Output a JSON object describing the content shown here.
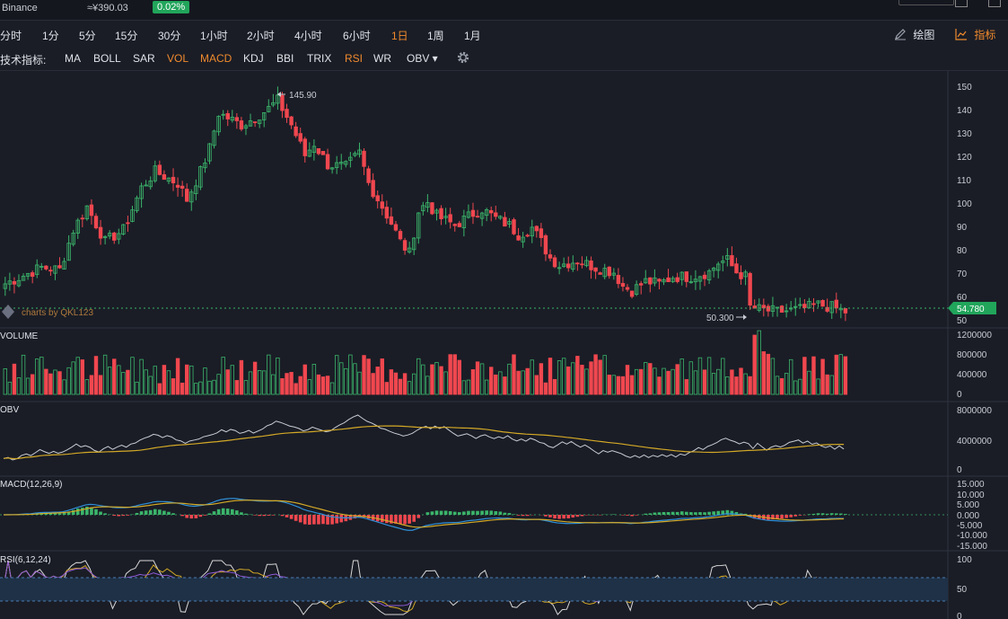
{
  "header": {
    "exchange": "Binance",
    "price": "≈¥390.03",
    "change": "0.02%"
  },
  "timeframes": [
    {
      "label": "分时",
      "active": false
    },
    {
      "label": "1分",
      "active": false
    },
    {
      "label": "5分",
      "active": false
    },
    {
      "label": "15分",
      "active": false
    },
    {
      "label": "30分",
      "active": false
    },
    {
      "label": "1小时",
      "active": false
    },
    {
      "label": "2小时",
      "active": false
    },
    {
      "label": "4小时",
      "active": false
    },
    {
      "label": "6小时",
      "active": false
    },
    {
      "label": "1日",
      "active": true
    },
    {
      "label": "1周",
      "active": false
    },
    {
      "label": "1月",
      "active": false
    }
  ],
  "tools": {
    "draw": "绘图",
    "indicator": "指标"
  },
  "indicator_bar": {
    "label": "技术指标:",
    "items": [
      {
        "label": "MA",
        "active": false
      },
      {
        "label": "BOLL",
        "active": false
      },
      {
        "label": "SAR",
        "active": false
      },
      {
        "label": "VOL",
        "active": true
      },
      {
        "label": "MACD",
        "active": true
      },
      {
        "label": "KDJ",
        "active": false
      },
      {
        "label": "BBI",
        "active": false
      },
      {
        "label": "TRIX",
        "active": false
      },
      {
        "label": "RSI",
        "active": true
      },
      {
        "label": "WR",
        "active": false
      },
      {
        "label": "OBV ▾",
        "active": false
      }
    ]
  },
  "colors": {
    "up": "#3bb56b",
    "down": "#f0474f",
    "bg": "#1a1d26",
    "accent": "#f08a2e",
    "last": "#21a55b"
  },
  "chart_data": {
    "type": "candlestick",
    "watermark": "charts by QKL123",
    "high_label": "145.90",
    "low_label": "50.300",
    "last_price": "54.780",
    "ylim": [
      50,
      150
    ],
    "y_ticks": [
      "150",
      "140",
      "130",
      "120",
      "110",
      "100",
      "90",
      "80",
      "70",
      "60",
      "50"
    ],
    "waypoints": [
      [
        0,
        67
      ],
      [
        8,
        74
      ],
      [
        12,
        73
      ],
      [
        15,
        90
      ],
      [
        18,
        100
      ],
      [
        22,
        85
      ],
      [
        26,
        90
      ],
      [
        30,
        108
      ],
      [
        33,
        115
      ],
      [
        36,
        112
      ],
      [
        38,
        110
      ],
      [
        40,
        103
      ],
      [
        43,
        115
      ],
      [
        45,
        125
      ],
      [
        47,
        140
      ],
      [
        52,
        135
      ],
      [
        55,
        138
      ],
      [
        58,
        142
      ],
      [
        60,
        145.5
      ],
      [
        63,
        135
      ],
      [
        66,
        122
      ],
      [
        68,
        127
      ],
      [
        71,
        118
      ],
      [
        75,
        117
      ],
      [
        78,
        123
      ],
      [
        80,
        110
      ],
      [
        83,
        100
      ],
      [
        85,
        93
      ],
      [
        87,
        85
      ],
      [
        89,
        80
      ],
      [
        91,
        98
      ],
      [
        93,
        102
      ],
      [
        95,
        96
      ],
      [
        99,
        92
      ],
      [
        103,
        97
      ],
      [
        105,
        99
      ],
      [
        108,
        95
      ],
      [
        111,
        92
      ],
      [
        113,
        88
      ],
      [
        116,
        91
      ],
      [
        118,
        85
      ],
      [
        120,
        78
      ],
      [
        122,
        75
      ],
      [
        126,
        77
      ],
      [
        130,
        74
      ],
      [
        134,
        72
      ],
      [
        136,
        66
      ],
      [
        138,
        64
      ],
      [
        141,
        68
      ],
      [
        144,
        67
      ],
      [
        147,
        70
      ],
      [
        151,
        70
      ],
      [
        155,
        72
      ],
      [
        157,
        76
      ],
      [
        159,
        77
      ],
      [
        161,
        72
      ],
      [
        163,
        70
      ],
      [
        164,
        57
      ],
      [
        166,
        56
      ],
      [
        170,
        55
      ],
      [
        175,
        56
      ],
      [
        179,
        58
      ],
      [
        182,
        57
      ],
      [
        185,
        55
      ]
    ],
    "panels": {
      "volume": {
        "title": "VOLUME",
        "ticks": [
          "1200000",
          "800000",
          "400000",
          "0"
        ]
      },
      "obv": {
        "title": "OBV",
        "ticks": [
          "8000000",
          "4000000",
          "0"
        ]
      },
      "macd": {
        "title": "MACD(12,26,9)",
        "ticks": [
          "15.000",
          "10.000",
          "5.000",
          "0.000",
          "-5.000",
          "-10.000",
          "-15.000"
        ]
      },
      "rsi": {
        "title": "RSI(6,12,24)",
        "ticks": [
          "100",
          "50",
          "0"
        ]
      }
    }
  }
}
